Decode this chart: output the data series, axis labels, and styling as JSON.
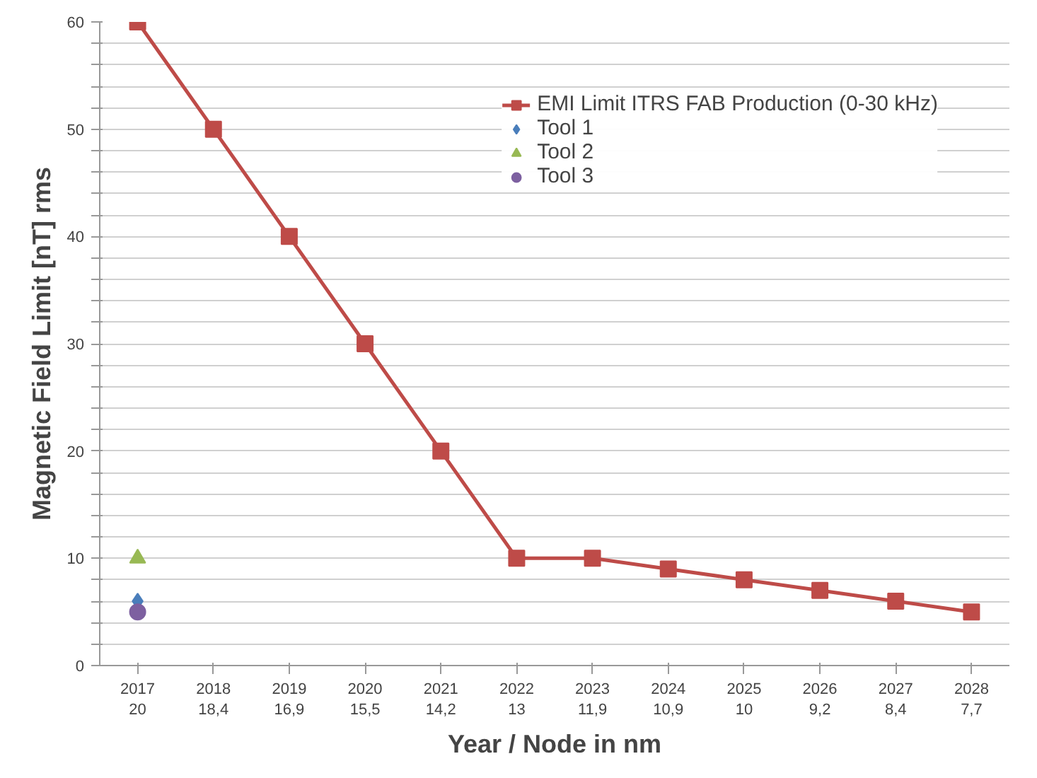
{
  "chart_data": {
    "type": "line",
    "xlabel": "Year / Node in nm",
    "ylabel": "Magnetic Field Limit [nT] rms",
    "categories": [
      "2017\n20",
      "2018\n18,4",
      "2019\n16,9",
      "2020\n15,5",
      "2021\n14,2",
      "2022\n13",
      "2023\n11,9",
      "2024\n10,9",
      "2025\n10",
      "2026\n9,2",
      "2027\n8,4",
      "2028\n7,7"
    ],
    "series": [
      {
        "name": "EMI Limit ITRS FAB Production (0-30 kHz)",
        "color": "#be4b48",
        "marker": "square",
        "values": [
          60,
          50,
          40,
          30,
          20,
          10,
          10,
          9,
          8,
          7,
          6,
          5
        ]
      },
      {
        "name": "Tool 1",
        "color": "#4a7ebb",
        "marker": "diamond",
        "values": [
          6,
          null,
          null,
          null,
          null,
          null,
          null,
          null,
          null,
          null,
          null,
          null
        ]
      },
      {
        "name": "Tool 2",
        "color": "#98b954",
        "marker": "triangle",
        "values": [
          10,
          null,
          null,
          null,
          null,
          null,
          null,
          null,
          null,
          null,
          null,
          null
        ]
      },
      {
        "name": "Tool 3",
        "color": "#7d60a0",
        "marker": "circle",
        "values": [
          5,
          null,
          null,
          null,
          null,
          null,
          null,
          null,
          null,
          null,
          null,
          null
        ]
      }
    ],
    "ylim": [
      0,
      60
    ],
    "yticks": [
      0,
      {
        "value": 2,
        "label": null
      },
      {
        "value": 4,
        "label": null
      },
      {
        "value": 6,
        "label": null
      },
      {
        "value": 8,
        "label": null
      },
      10,
      {
        "value": 12,
        "label": null
      },
      {
        "value": 14,
        "label": null
      },
      {
        "value": 16,
        "label": null
      },
      {
        "value": 18,
        "label": null
      },
      20,
      {
        "value": 22,
        "label": null
      },
      {
        "value": 24,
        "label": null
      },
      {
        "value": 26,
        "label": null
      },
      {
        "value": 28,
        "label": null
      },
      30,
      {
        "value": 32,
        "label": null
      },
      {
        "value": 34,
        "label": null
      },
      {
        "value": 36,
        "label": null
      },
      {
        "value": 38,
        "label": null
      },
      40,
      {
        "value": 42,
        "label": null
      },
      {
        "value": 44,
        "label": null
      },
      {
        "value": 46,
        "label": null
      },
      {
        "value": 48,
        "label": null
      },
      50,
      {
        "value": 52,
        "label": null
      },
      {
        "value": 54,
        "label": null
      },
      {
        "value": 56,
        "label": null
      },
      {
        "value": 58,
        "label": null
      },
      60
    ],
    "grid": "y",
    "legend": "top right"
  }
}
